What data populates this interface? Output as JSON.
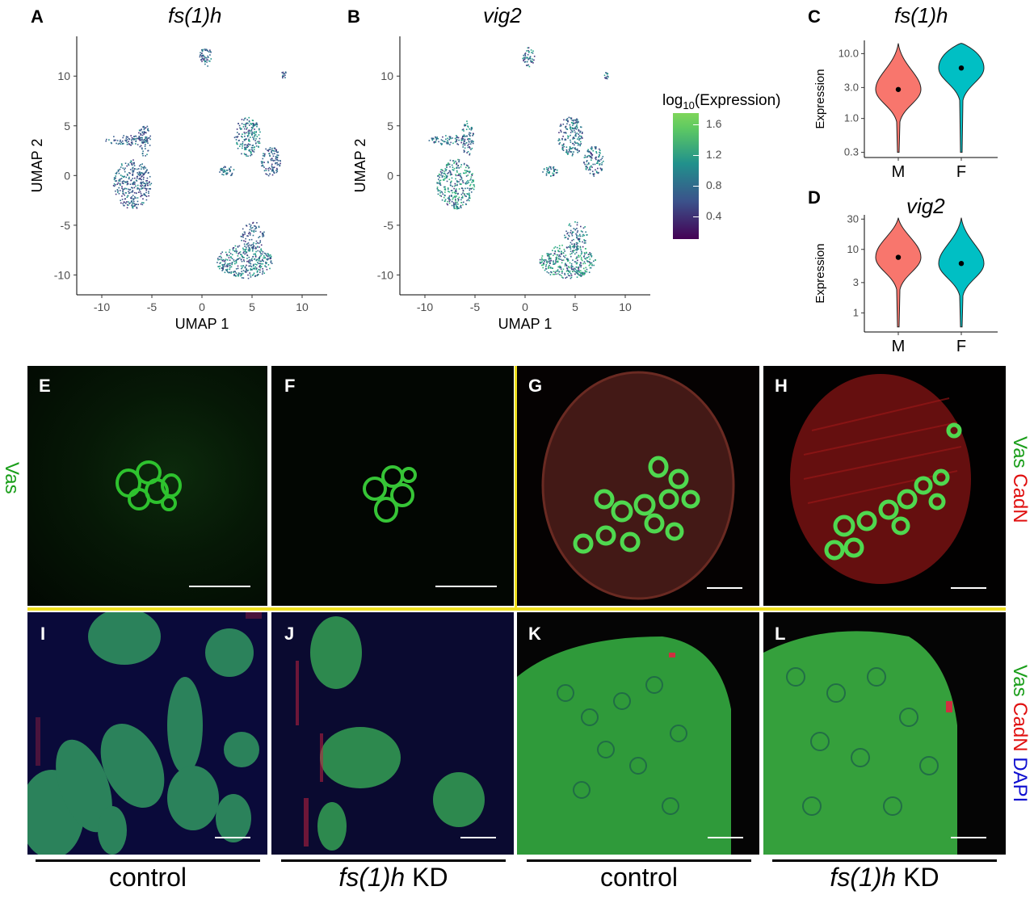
{
  "panels": {
    "A": {
      "label": "A",
      "title": "fs(1)h"
    },
    "B": {
      "label": "B",
      "title": "vig2"
    },
    "C": {
      "label": "C",
      "title": "fs(1)h"
    },
    "D": {
      "label": "D",
      "title": "vig2"
    },
    "E": {
      "label": "E"
    },
    "F": {
      "label": "F"
    },
    "G": {
      "label": "G"
    },
    "H": {
      "label": "H"
    },
    "I": {
      "label": "I"
    },
    "J": {
      "label": "J"
    },
    "K": {
      "label": "K"
    },
    "L": {
      "label": "L"
    }
  },
  "umap": {
    "xlabel": "UMAP 1",
    "ylabel": "UMAP 2",
    "xticks": [
      "-10",
      "-5",
      "0",
      "5",
      "10"
    ],
    "yticks": [
      "10",
      "5",
      "0",
      "-5",
      "-10"
    ]
  },
  "colorbar": {
    "title_prefix": "log",
    "title_sub": "10",
    "title_suffix": "(Expression)",
    "ticks": [
      "1.6",
      "1.2",
      "0.8",
      "0.4"
    ],
    "colors": [
      "#440154",
      "#3b528b",
      "#21918c",
      "#5ec962",
      "#7fd65a"
    ]
  },
  "violin": {
    "ylabel": "Expression",
    "categories": [
      "M",
      "F"
    ],
    "colors": {
      "M": "#f8766d",
      "F": "#00bfc4"
    },
    "C_yticks": [
      "10.0",
      "3.0",
      "1.0",
      "0.3"
    ],
    "D_yticks": [
      "30",
      "10",
      "3",
      "1"
    ]
  },
  "chart_data": [
    {
      "type": "violin",
      "title": "fs(1)h",
      "ylabel": "Expression",
      "scale": "log10",
      "categories": [
        "M",
        "F"
      ],
      "medians": [
        2.8,
        6.0
      ],
      "ylim": [
        0.25,
        16
      ]
    },
    {
      "type": "violin",
      "title": "vig2",
      "ylabel": "Expression",
      "scale": "log10",
      "categories": [
        "M",
        "F"
      ],
      "medians": [
        7.5,
        6.0
      ],
      "ylim": [
        0.5,
        35
      ]
    }
  ],
  "stain_labels": {
    "row1_left": "Vas",
    "row1_right_vas": "Vas",
    "row1_right_cadn": "CadN",
    "row2_vas": "Vas",
    "row2_cadn": "CadN",
    "row2_dapi": "DAPI"
  },
  "stain_colors": {
    "vas": "#1a9e1a",
    "cadn": "#e01010",
    "dapi": "#1010d0",
    "divider": "#f0e020"
  },
  "bottom": {
    "control1": "control",
    "kd1_gene": "fs(1)h",
    "kd1_suffix": " KD",
    "control2": "control",
    "kd2_gene": "fs(1)h",
    "kd2_suffix": " KD"
  }
}
